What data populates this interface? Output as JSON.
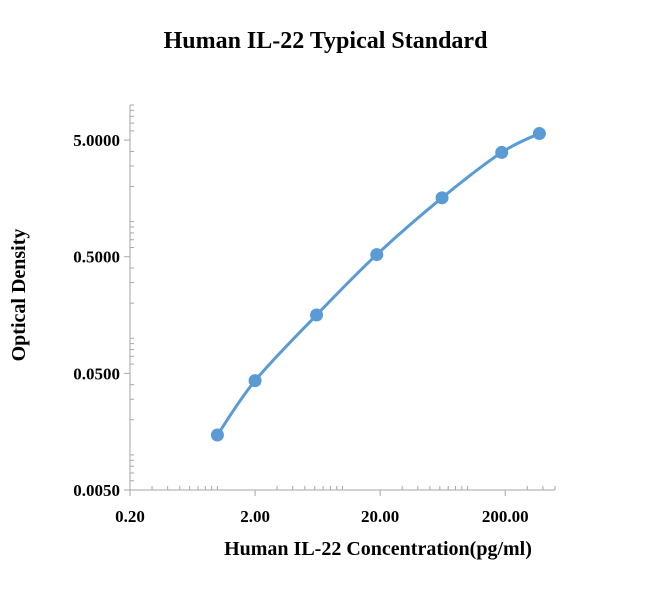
{
  "chart_data": {
    "type": "line",
    "title": "Human IL-22 Typical Standard",
    "xlabel": "Human IL-22 Concentration(pg/ml)",
    "ylabel": "Optical Density",
    "x_scale": "log",
    "y_scale": "log",
    "xlim": [
      0.2,
      500
    ],
    "ylim": [
      0.005,
      10
    ],
    "x_ticks": [
      0.2,
      2,
      20,
      200
    ],
    "x_tick_labels": [
      "0.20",
      "2.00",
      "20.00",
      "200.00"
    ],
    "y_ticks": [
      0.005,
      0.05,
      0.5,
      5
    ],
    "y_tick_labels": [
      "0.0050",
      "0.0500",
      "0.5000",
      "5.0000"
    ],
    "grid": false,
    "legend": "none",
    "series": [
      {
        "x": [
          1.0,
          2.0,
          6.2,
          18.8,
          62.5,
          187.5,
          375
        ],
        "y": [
          0.0148,
          0.0433,
          0.1582,
          0.5218,
          1.6,
          3.92,
          5.7
        ]
      }
    ],
    "colors": {
      "series": "#5b9bd5",
      "axis": "#a6a6a6"
    }
  }
}
